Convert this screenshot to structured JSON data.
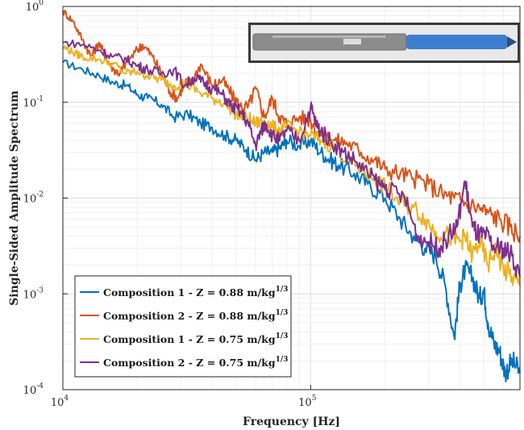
{
  "chart_data": {
    "type": "line",
    "x_scale": "log",
    "y_scale": "log",
    "xlim": [
      10000,
      700000
    ],
    "ylim": [
      0.0001,
      1
    ],
    "xlabel": "Frequency [Hz]",
    "ylabel": "Single-Sided Amplitude Spectrum",
    "x_ticks": [
      10000,
      100000
    ],
    "y_ticks": [
      0.0001,
      0.001,
      0.01,
      0.1,
      1
    ],
    "x_tick_labels": [
      {
        "base": "10",
        "exp": "4"
      },
      {
        "base": "10",
        "exp": "5"
      }
    ],
    "y_tick_labels": [
      {
        "base": "10",
        "exp": "-4"
      },
      {
        "base": "10",
        "exp": "-3"
      },
      {
        "base": "10",
        "exp": "-2"
      },
      {
        "base": "10",
        "exp": "-1"
      },
      {
        "base": "10",
        "exp": "0"
      }
    ],
    "grid": true,
    "legend_placement": "bottom-left",
    "inset_image": {
      "description_icon": "photo-of-probe",
      "probe_body_color": "#8c8c8c",
      "probe_tip_color": "#3d7fcf",
      "background_color": "#e9e9e9"
    },
    "series": [
      {
        "name": "Composition 1 - Z = 0.88 m/kg",
        "name_superscript": "1/3",
        "color": "#0072BD",
        "x": [
          10000,
          12000,
          14000,
          16000,
          18000,
          20000,
          22000,
          25000,
          28000,
          32000,
          36000,
          40000,
          45000,
          50000,
          55000,
          60000,
          65000,
          70000,
          75000,
          80000,
          90000,
          100000,
          110000,
          120000,
          130000,
          150000,
          170000,
          200000,
          230000,
          260000,
          290000,
          320000,
          350000,
          380000,
          400000,
          420000,
          450000,
          480000,
          500000,
          520000,
          550000,
          580000,
          610000,
          650000,
          700000
        ],
        "y": [
          0.26,
          0.22,
          0.19,
          0.16,
          0.15,
          0.12,
          0.11,
          0.095,
          0.07,
          0.075,
          0.06,
          0.055,
          0.045,
          0.04,
          0.032,
          0.025,
          0.03,
          0.03,
          0.033,
          0.04,
          0.035,
          0.04,
          0.03,
          0.025,
          0.022,
          0.018,
          0.014,
          0.01,
          0.006,
          0.004,
          0.003,
          0.0025,
          0.0012,
          0.00035,
          0.0012,
          0.0018,
          0.0015,
          0.0009,
          0.0011,
          0.0005,
          0.0003,
          0.00025,
          0.00015,
          0.0002,
          0.00015
        ]
      },
      {
        "name": "Composition 2 - Z = 0.88 m/kg",
        "name_superscript": "1/3",
        "color": "#D95319",
        "x": [
          10000,
          11000,
          12000,
          13000,
          14000,
          15000,
          16000,
          17000,
          18000,
          20000,
          21000,
          23000,
          25000,
          27000,
          29000,
          31000,
          33000,
          36000,
          40000,
          44000,
          48000,
          52000,
          56000,
          60000,
          65000,
          70000,
          75000,
          80000,
          90000,
          100000,
          110000,
          125000,
          140000,
          160000,
          180000,
          200000,
          230000,
          260000,
          300000,
          340000,
          380000,
          420000,
          470000,
          520000,
          580000,
          640000,
          700000
        ],
        "y": [
          0.9,
          0.7,
          0.45,
          0.3,
          0.42,
          0.28,
          0.22,
          0.2,
          0.26,
          0.35,
          0.4,
          0.3,
          0.2,
          0.13,
          0.11,
          0.16,
          0.16,
          0.25,
          0.15,
          0.17,
          0.12,
          0.09,
          0.09,
          0.14,
          0.07,
          0.11,
          0.07,
          0.06,
          0.07,
          0.065,
          0.045,
          0.04,
          0.038,
          0.03,
          0.025,
          0.02,
          0.018,
          0.016,
          0.014,
          0.011,
          0.01,
          0.009,
          0.008,
          0.007,
          0.006,
          0.005,
          0.004
        ]
      },
      {
        "name": "Composition 1 - Z = 0.75 m/kg",
        "name_superscript": "1/3",
        "color": "#EDB120",
        "x": [
          10000,
          11000,
          12000,
          14000,
          16000,
          18000,
          20000,
          22000,
          25000,
          28000,
          31000,
          35000,
          40000,
          45000,
          50000,
          55000,
          60000,
          65000,
          70000,
          75000,
          80000,
          90000,
          100000,
          110000,
          125000,
          140000,
          160000,
          180000,
          200000,
          230000,
          260000,
          290000,
          320000,
          360000,
          400000,
          420000,
          450000,
          480000,
          520000,
          560000,
          600000,
          650000,
          700000
        ],
        "y": [
          0.38,
          0.33,
          0.3,
          0.28,
          0.25,
          0.2,
          0.21,
          0.19,
          0.17,
          0.15,
          0.16,
          0.13,
          0.11,
          0.1,
          0.075,
          0.07,
          0.06,
          0.065,
          0.055,
          0.05,
          0.055,
          0.05,
          0.045,
          0.04,
          0.035,
          0.025,
          0.02,
          0.016,
          0.013,
          0.009,
          0.008,
          0.006,
          0.0045,
          0.004,
          0.0035,
          0.004,
          0.0025,
          0.0035,
          0.002,
          0.003,
          0.0018,
          0.0015,
          0.0012
        ]
      },
      {
        "name": "Composition 2 - Z = 0.75 m/kg",
        "name_superscript": "1/3",
        "color": "#7E2F8E",
        "x": [
          10000,
          12000,
          14000,
          16000,
          18000,
          20000,
          22000,
          25000,
          28000,
          31000,
          34000,
          37000,
          40000,
          44000,
          48000,
          52000,
          56000,
          60000,
          63000,
          66000,
          70000,
          75000,
          80000,
          90000,
          100000,
          105000,
          110000,
          120000,
          135000,
          150000,
          170000,
          190000,
          210000,
          240000,
          270000,
          300000,
          330000,
          360000,
          390000,
          420000,
          450000,
          480000,
          510000,
          550000,
          600000,
          650000,
          700000
        ],
        "y": [
          0.42,
          0.4,
          0.35,
          0.3,
          0.28,
          0.24,
          0.22,
          0.2,
          0.22,
          0.15,
          0.18,
          0.16,
          0.14,
          0.12,
          0.09,
          0.08,
          0.06,
          0.035,
          0.05,
          0.06,
          0.045,
          0.04,
          0.05,
          0.04,
          0.09,
          0.06,
          0.05,
          0.04,
          0.03,
          0.025,
          0.018,
          0.014,
          0.012,
          0.01,
          0.004,
          0.0035,
          0.003,
          0.004,
          0.005,
          0.015,
          0.005,
          0.004,
          0.004,
          0.003,
          0.003,
          0.0025,
          0.0015
        ]
      }
    ]
  }
}
